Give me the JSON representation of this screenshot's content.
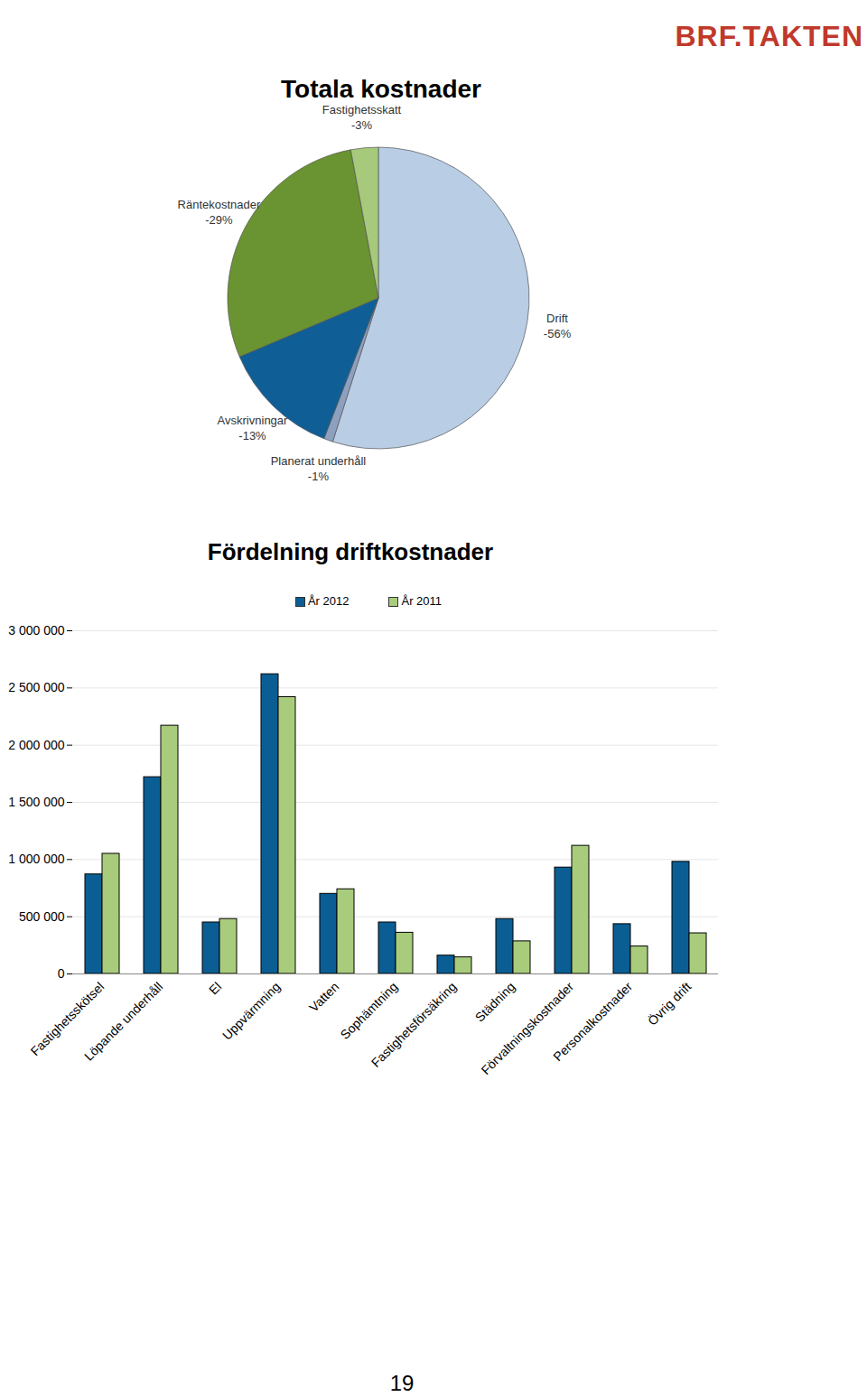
{
  "logo": "BRF.TAKTEN",
  "page_number": 19,
  "chart_data": [
    {
      "type": "pie",
      "title": "Totala kostnader",
      "categories": [
        "Drift",
        "Planerat underhåll",
        "Avskrivningar",
        "Räntekostnader",
        "Fastighetsskatt"
      ],
      "values": [
        -56,
        -1,
        -13,
        -29,
        -3
      ],
      "value_labels": [
        "-56%",
        "-1%",
        "-13%",
        "-29%",
        "-3%"
      ],
      "colors": [
        "#b9cde5",
        "#8ea0bf",
        "#0f5f96",
        "#6a9331",
        "#a6c97b"
      ],
      "data_labels": true
    },
    {
      "type": "bar",
      "title": "Fördelning driftkostnader",
      "categories": [
        "Fastighetsskötsel",
        "Löpande underhåll",
        "El",
        "Uppvärmning",
        "Vatten",
        "Sophämtning",
        "Fastighetsförsäkring",
        "Städning",
        "Förvaltningskostnader",
        "Personalkostnader",
        "Övrig drift"
      ],
      "series": [
        {
          "name": "År 2012",
          "color": "#0b5e94",
          "values": [
            870000,
            1720000,
            450000,
            2620000,
            700000,
            450000,
            160000,
            480000,
            930000,
            435000,
            980000
          ]
        },
        {
          "name": "År 2011",
          "color": "#a8cc7c",
          "values": [
            1050000,
            2170000,
            480000,
            2420000,
            740000,
            360000,
            145000,
            285000,
            1120000,
            240000,
            355000
          ]
        }
      ],
      "ylim": [
        0,
        3000000
      ],
      "yticks": [
        0,
        {
          "value": 500000,
          "label": "500 000"
        },
        {
          "value": 1000000,
          "label": "1 000 000"
        },
        {
          "value": 1500000,
          "label": "1 500 000"
        },
        {
          "value": 2000000,
          "label": "2 000 000"
        },
        {
          "value": 2500000,
          "label": "2 500 000"
        },
        {
          "value": 3000000,
          "label": "3 000 000"
        }
      ],
      "grid": true,
      "legend": "top"
    }
  ]
}
